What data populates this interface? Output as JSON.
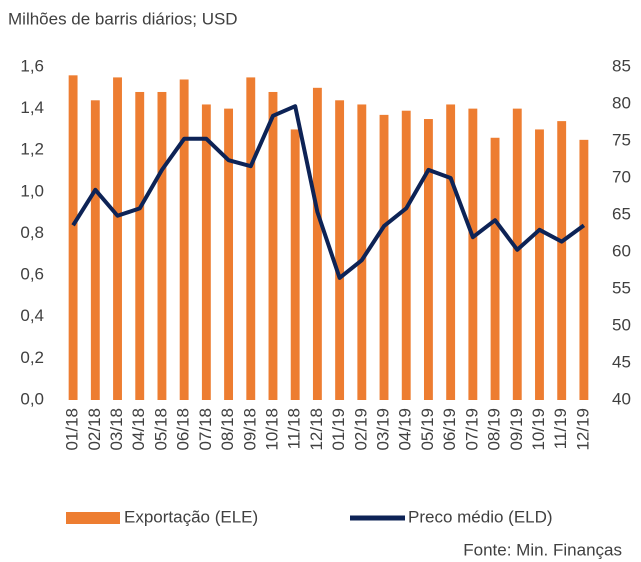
{
  "chart_data": {
    "type": "bar_line",
    "title": "Milhões de barris diários; USD",
    "source": "Fonte: Min. Finanças",
    "categories": [
      "01/18",
      "02/18",
      "03/18",
      "04/18",
      "05/18",
      "06/18",
      "07/18",
      "08/18",
      "09/18",
      "10/18",
      "11/18",
      "12/18",
      "01/19",
      "02/19",
      "03/19",
      "04/19",
      "05/19",
      "06/19",
      "07/19",
      "08/19",
      "09/19",
      "10/19",
      "11/19",
      "12/19"
    ],
    "series": [
      {
        "name": "Exportação (ELE)",
        "type": "bar",
        "color": "#ed7d31",
        "axis": "y",
        "values": [
          1.56,
          1.44,
          1.55,
          1.48,
          1.48,
          1.54,
          1.42,
          1.4,
          1.55,
          1.48,
          1.3,
          1.5,
          1.44,
          1.42,
          1.37,
          1.39,
          1.35,
          1.42,
          1.4,
          1.26,
          1.4,
          1.3,
          1.34,
          1.25
        ]
      },
      {
        "name": "Preco médio (ELD)",
        "type": "line",
        "color": "#0d2356",
        "axis": "y2",
        "values": [
          63.6,
          68.4,
          64.9,
          65.9,
          71.1,
          75.3,
          75.3,
          72.4,
          71.6,
          78.4,
          79.7,
          65.4,
          56.5,
          58.9,
          63.5,
          65.9,
          71.1,
          70.0,
          62.0,
          64.3,
          60.3,
          63.0,
          61.4,
          63.6
        ]
      }
    ],
    "ylim": [
      0,
      1.6
    ],
    "yticks": [
      {
        "value": 0,
        "label": "0,0"
      },
      {
        "value": 0.2,
        "label": "0,2"
      },
      {
        "value": 0.4,
        "label": "0,4"
      },
      {
        "value": 0.6,
        "label": "0,6"
      },
      {
        "value": 0.8,
        "label": "0,8"
      },
      {
        "value": 1.0,
        "label": "1,0"
      },
      {
        "value": 1.2,
        "label": "1,2"
      },
      {
        "value": 1.4,
        "label": "1,4"
      },
      {
        "value": 1.6,
        "label": "1,6"
      }
    ],
    "y2lim": [
      40,
      85
    ],
    "y2ticks": [
      40,
      45,
      50,
      55,
      60,
      65,
      70,
      75,
      80,
      85
    ],
    "legend": "bottom",
    "grid": false
  }
}
